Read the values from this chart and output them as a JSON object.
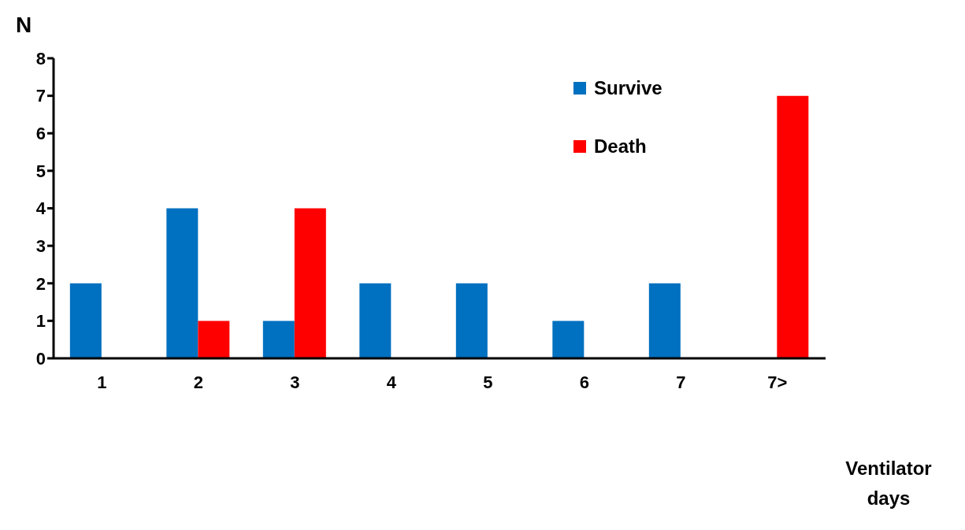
{
  "chart_data": {
    "type": "bar",
    "xlabel": "Ventilator days",
    "ylabel": "N",
    "categories": [
      "1",
      "2",
      "3",
      "4",
      "5",
      "6",
      "7",
      "7>"
    ],
    "series": [
      {
        "name": "Survive",
        "color": "#0070c0",
        "values": [
          2,
          4,
          1,
          2,
          2,
          1,
          2,
          0
        ]
      },
      {
        "name": "Death",
        "color": "#ff0000",
        "values": [
          0,
          1,
          4,
          0,
          0,
          0,
          0,
          7
        ]
      }
    ],
    "ylim": [
      0,
      8
    ],
    "yticks": [
      0,
      1,
      2,
      3,
      4,
      5,
      6,
      7,
      8
    ],
    "grid": false,
    "legend": "top right"
  }
}
